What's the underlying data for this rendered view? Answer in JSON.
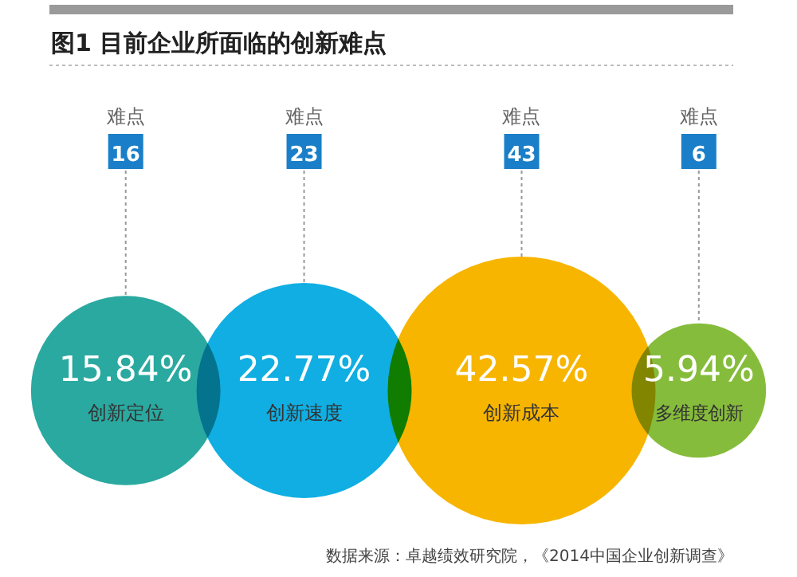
{
  "chart_data": {
    "type": "other",
    "title": "图1  目前企业所面临的创新难点",
    "categories": [
      "创新定位",
      "创新速度",
      "创新成本",
      "多维度创新"
    ],
    "series": [
      {
        "name": "难点",
        "values": [
          16,
          23,
          43,
          6
        ],
        "value_labels": [
          "16",
          "23",
          "43",
          "6"
        ]
      },
      {
        "values": [
          15.84,
          22.77,
          42.57,
          5.94
        ],
        "colors": [
          "#2aa9a0",
          "#10aee2",
          "#f7b500",
          "#86bc3b"
        ],
        "value_labels": [
          "15.84%",
          "22.77%",
          "42.57%",
          "5.94%"
        ]
      }
    ],
    "annotations": [
      "数据来源：卓越绩效研究院，《2014中国企业创新调查》"
    ]
  }
}
